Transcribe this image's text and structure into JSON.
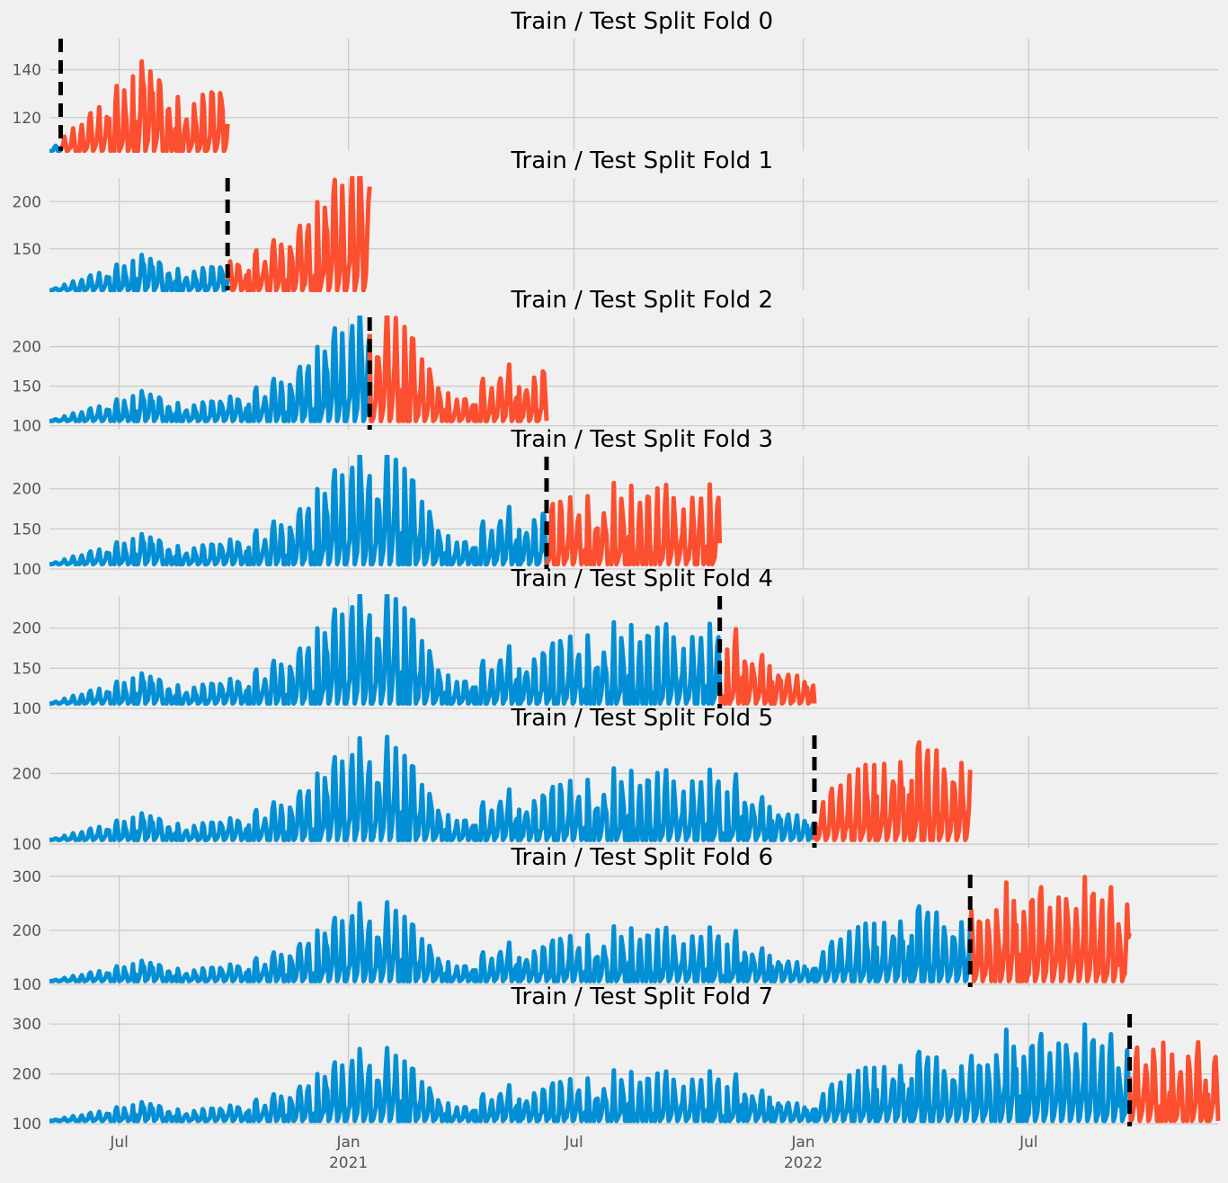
{
  "chart_data": {
    "type": "line",
    "x_ticks": [
      {
        "date": "2020-07-01",
        "label": "Jul",
        "sublabel": ""
      },
      {
        "date": "2021-01-01",
        "label": "Jan",
        "sublabel": "2021"
      },
      {
        "date": "2021-07-01",
        "label": "Jul",
        "sublabel": ""
      },
      {
        "date": "2022-01-01",
        "label": "Jan",
        "sublabel": "2022"
      },
      {
        "date": "2022-07-01",
        "label": "Jul",
        "sublabel": ""
      }
    ],
    "x_range": [
      "2020-05-06",
      "2022-11-30"
    ],
    "grid": true,
    "colors": {
      "train": "#008fd5",
      "test": "#fc4f30",
      "split": "#000000",
      "background": "#f0f0f0",
      "grid": "#cbcbcb"
    },
    "series_shape": {
      "floor": 106,
      "anchors": [
        [
          "2020-05-06",
          0
        ],
        [
          "2020-06-20",
          18
        ],
        [
          "2020-07-20",
          40
        ],
        [
          "2020-08-20",
          18
        ],
        [
          "2020-09-25",
          25
        ],
        [
          "2020-11-01",
          45
        ],
        [
          "2020-12-05",
          80
        ],
        [
          "2021-01-10",
          135
        ],
        [
          "2021-02-15",
          110
        ],
        [
          "2021-03-25",
          20
        ],
        [
          "2021-05-01",
          55
        ],
        [
          "2021-06-10",
          70
        ],
        [
          "2021-08-10",
          80
        ],
        [
          "2021-10-10",
          80
        ],
        [
          "2021-11-25",
          70
        ],
        [
          "2021-12-31",
          25
        ],
        [
          "2022-02-10",
          90
        ],
        [
          "2022-04-01",
          120
        ],
        [
          "2022-05-15",
          110
        ],
        [
          "2022-06-20",
          150
        ],
        [
          "2022-08-20",
          150
        ],
        [
          "2022-09-30",
          140
        ],
        [
          "2022-11-30",
          120
        ]
      ],
      "amplitude": 60,
      "weekly_pattern": [
        0.0,
        0.05,
        0.15,
        0.35,
        0.85,
        1.0,
        0.55
      ]
    },
    "panels": [
      {
        "title": "Train / Test Split Fold 0",
        "split_date": "2020-05-15",
        "train_start": "2020-05-06",
        "test_end": "2020-09-26",
        "ylim": [
          106,
          153
        ],
        "yticks": [
          120,
          140
        ]
      },
      {
        "title": "Train / Test Split Fold 1",
        "split_date": "2020-09-26",
        "train_start": "2020-05-06",
        "test_end": "2021-01-18",
        "ylim": [
          106,
          225
        ],
        "yticks": [
          150,
          200
        ]
      },
      {
        "title": "Train / Test Split Fold 2",
        "split_date": "2021-01-18",
        "train_start": "2020-05-06",
        "test_end": "2021-06-09",
        "ylim": [
          95,
          237
        ],
        "yticks": [
          100,
          150,
          200
        ]
      },
      {
        "title": "Train / Test Split Fold 3",
        "split_date": "2021-06-09",
        "train_start": "2020-05-06",
        "test_end": "2021-10-26",
        "ylim": [
          100,
          240
        ],
        "yticks": [
          100,
          150,
          200
        ]
      },
      {
        "title": "Train / Test Split Fold 4",
        "split_date": "2021-10-26",
        "train_start": "2020-05-06",
        "test_end": "2022-01-10",
        "ylim": [
          100,
          240
        ],
        "yticks": [
          100,
          150,
          200
        ]
      },
      {
        "title": "Train / Test Split Fold 5",
        "split_date": "2022-01-10",
        "train_start": "2020-05-06",
        "test_end": "2022-05-15",
        "ylim": [
          95,
          254
        ],
        "yticks": [
          100,
          200
        ]
      },
      {
        "title": "Train / Test Split Fold 6",
        "split_date": "2022-05-15",
        "train_start": "2020-05-06",
        "test_end": "2022-09-20",
        "ylim": [
          95,
          303
        ],
        "yticks": [
          100,
          200,
          300
        ]
      },
      {
        "title": "Train / Test Split Fold 7",
        "split_date": "2022-09-20",
        "train_start": "2020-05-06",
        "test_end": "2022-11-30",
        "ylim": [
          95,
          320
        ],
        "yticks": [
          100,
          200,
          300
        ]
      }
    ]
  }
}
